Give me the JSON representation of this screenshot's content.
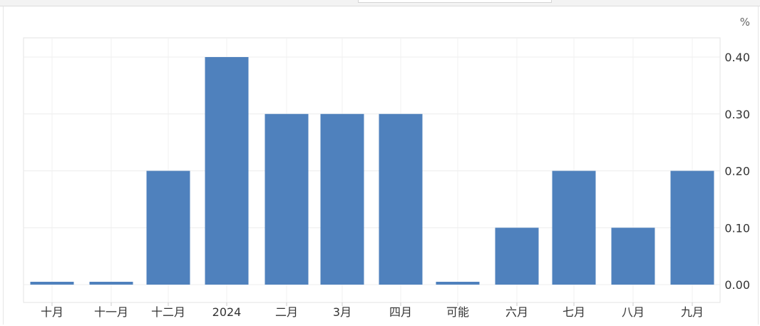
{
  "chart_data": {
    "type": "bar",
    "unit_label": "%",
    "categories": [
      "十月",
      "十一月",
      "十二月",
      "2024",
      "二月",
      "3月",
      "四月",
      "可能",
      "六月",
      "七月",
      "八月",
      "九月"
    ],
    "values": [
      0.0,
      0.0,
      0.2,
      0.4,
      0.3,
      0.3,
      0.3,
      0.0,
      0.1,
      0.2,
      0.1,
      0.2
    ],
    "ylim": [
      0,
      0.4
    ],
    "yticks": [
      "0.00",
      "0.10",
      "0.20",
      "0.30",
      "0.40"
    ],
    "y_axis_position": "right",
    "grid": true,
    "bar_color": "#4f81bd"
  }
}
